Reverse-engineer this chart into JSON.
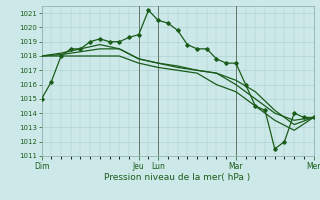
{
  "background_color": "#cce8e8",
  "grid_color": "#aacccc",
  "line_color": "#1a5c1a",
  "xlabel": "Pression niveau de la mer( hPa )",
  "ylim": [
    1011,
    1021.5
  ],
  "yticks": [
    1011,
    1012,
    1013,
    1014,
    1015,
    1016,
    1017,
    1018,
    1019,
    1020,
    1021
  ],
  "day_labels": [
    "Dim",
    "Jeu",
    "Lun",
    "Mar",
    "Mer"
  ],
  "day_positions": [
    0,
    60,
    72,
    120,
    168
  ],
  "xlim": [
    0,
    168
  ],
  "vline_positions": [
    60,
    72,
    120,
    168
  ],
  "series1_x": [
    0,
    6,
    12,
    18,
    24,
    30,
    36,
    42,
    48,
    54,
    60,
    66,
    72,
    78,
    84,
    90,
    96,
    102,
    108,
    114,
    120,
    126,
    132,
    138,
    144,
    150,
    156,
    162,
    168
  ],
  "series1_y": [
    1015.0,
    1016.2,
    1018.0,
    1018.5,
    1018.5,
    1019.0,
    1019.2,
    1019.0,
    1019.0,
    1019.3,
    1019.5,
    1021.2,
    1020.5,
    1020.3,
    1019.8,
    1018.8,
    1018.5,
    1018.5,
    1017.8,
    1017.5,
    1017.5,
    1016.0,
    1014.5,
    1014.2,
    1011.5,
    1012.0,
    1014.0,
    1013.7,
    1013.7
  ],
  "series2_x": [
    0,
    12,
    24,
    36,
    48,
    60,
    72,
    84,
    96,
    108,
    120,
    132,
    144,
    156,
    168
  ],
  "series2_y": [
    1018.0,
    1018.2,
    1018.5,
    1018.8,
    1018.5,
    1017.8,
    1017.5,
    1017.3,
    1017.0,
    1016.8,
    1016.0,
    1015.0,
    1014.0,
    1013.5,
    1013.7
  ],
  "series3_x": [
    0,
    12,
    24,
    36,
    48,
    60,
    72,
    84,
    96,
    108,
    120,
    132,
    144,
    156,
    168
  ],
  "series3_y": [
    1018.0,
    1018.1,
    1018.3,
    1018.5,
    1018.5,
    1017.8,
    1017.5,
    1017.2,
    1017.0,
    1016.8,
    1016.3,
    1015.5,
    1014.2,
    1013.2,
    1013.7
  ],
  "series4_x": [
    0,
    12,
    24,
    36,
    48,
    60,
    72,
    84,
    96,
    108,
    120,
    132,
    144,
    156,
    168
  ],
  "series4_y": [
    1018.0,
    1018.0,
    1018.0,
    1018.0,
    1018.0,
    1017.5,
    1017.2,
    1017.0,
    1016.8,
    1016.0,
    1015.5,
    1014.5,
    1013.5,
    1012.8,
    1013.7
  ]
}
